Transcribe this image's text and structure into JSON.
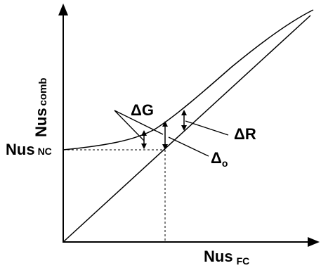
{
  "diagram": {
    "y_axis": {
      "label_main": "Nus",
      "label_sub": "comb"
    },
    "x_axis": {
      "label_main": "Nus",
      "label_sub": "FC"
    },
    "y_intercept": {
      "label_main": "Nus",
      "label_sub": "NC"
    },
    "annotations": {
      "delta_g": "ΔG",
      "delta_r": "ΔR",
      "delta_o_main": "Δ",
      "delta_o_sub": "o"
    },
    "colors": {
      "line": "#000000",
      "dashed": "#000000",
      "background": "#ffffff"
    },
    "curves": [
      "combined-curve",
      "forced-convection-line",
      "natural-convection-dashed-line",
      "forced-convection-dashed-line"
    ]
  }
}
